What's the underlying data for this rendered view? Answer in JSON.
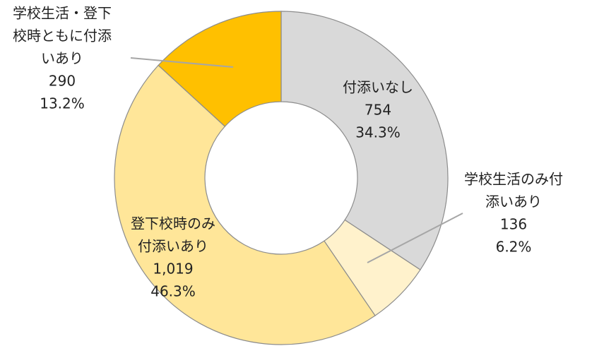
{
  "chart_data": {
    "type": "donut",
    "categories": [
      [
        "付添いなし"
      ],
      [
        "学校生活のみ付",
        "添いあり"
      ],
      [
        "登下校時のみ",
        "付添いあり"
      ],
      [
        "学校生活・登下",
        "校時ともに付添",
        "いあり"
      ]
    ],
    "values": [
      754,
      136,
      1019,
      290
    ],
    "value_labels": [
      "754",
      "136",
      "1,019",
      "290"
    ],
    "percentages": [
      34.3,
      6.2,
      46.3,
      13.2
    ],
    "percent_labels": [
      "34.3%",
      "6.2%",
      "46.3%",
      "13.2%"
    ],
    "colors": [
      "#d9d9d9",
      "#fff2cc",
      "#ffe699",
      "#ffc000"
    ]
  }
}
